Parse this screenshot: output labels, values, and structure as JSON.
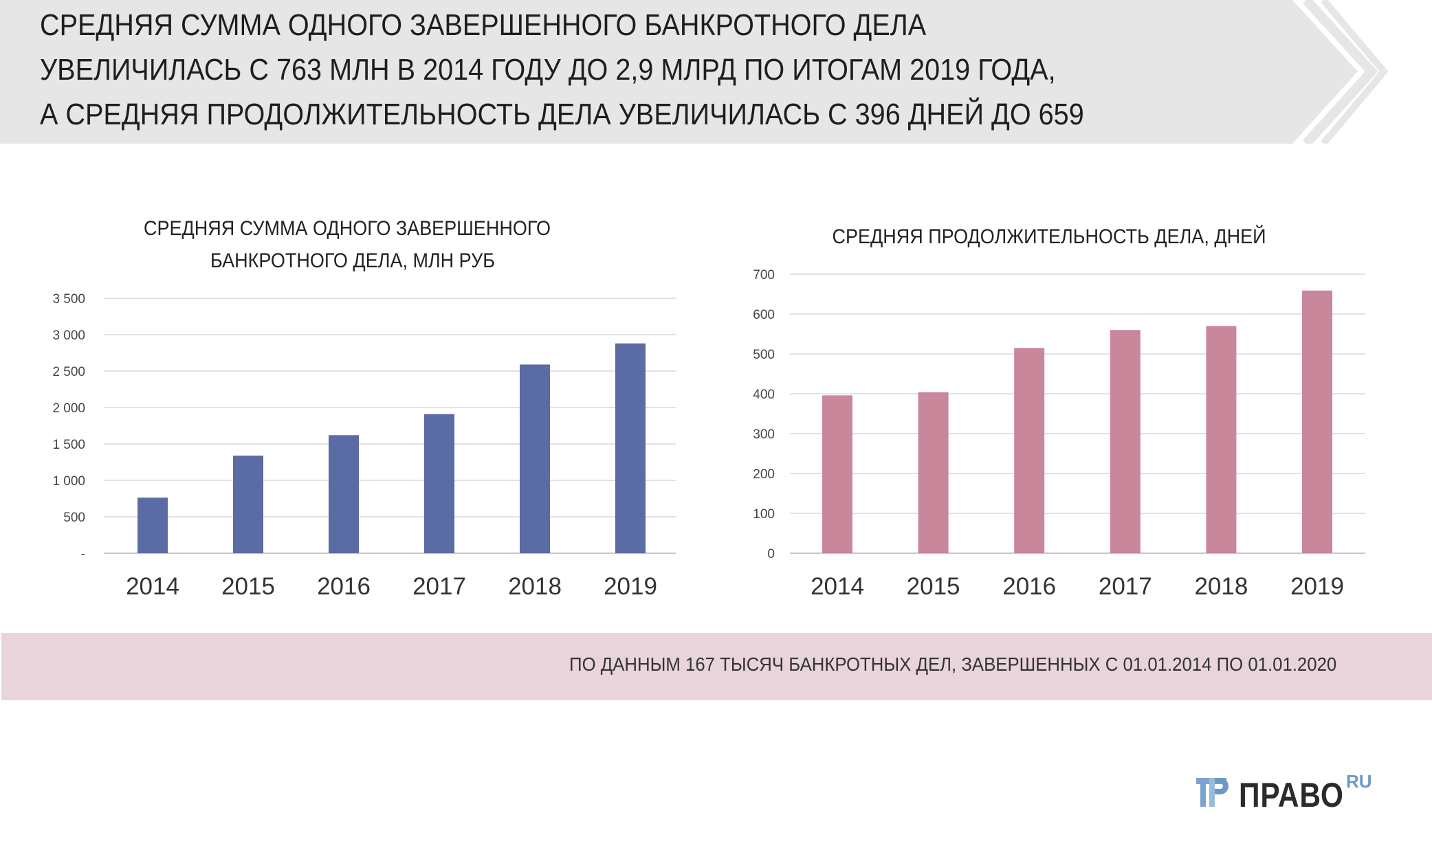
{
  "header": {
    "lines": [
      "СРЕДНЯЯ СУММА ОДНОГО ЗАВЕРШЕННОГО БАНКРОТНОГО ДЕЛА",
      "УВЕЛИЧИЛАСЬ С 763 МЛН В 2014 ГОДУ ДО 2,9 МЛРД ПО ИТОГАМ 2019 ГОДА,",
      "А СРЕДНЯЯ ПРОДОЛЖИТЕЛЬНОСТЬ ДЕЛА УВЕЛИЧИЛАСЬ С 396 ДНЕЙ ДО 659"
    ]
  },
  "chart_data": [
    {
      "type": "bar",
      "title_lines": [
        "СРЕДНЯЯ СУММА ОДНОГО ЗАВЕРШЕННОГО",
        "БАНКРОТНОГО ДЕЛА, МЛН РУБ"
      ],
      "categories": [
        "2014",
        "2015",
        "2016",
        "2017",
        "2018",
        "2019"
      ],
      "values": [
        763,
        1340,
        1620,
        1910,
        2590,
        2880
      ],
      "ylim": [
        0,
        3500
      ],
      "yticks": [
        0,
        500,
        1000,
        1500,
        2000,
        2500,
        3000,
        3500
      ],
      "ytick_labels": [
        "-",
        "500",
        "1 000",
        "1 500",
        "2 000",
        "2 500",
        "3 000",
        "3 500"
      ],
      "grid": true,
      "color": "#5b6ba3"
    },
    {
      "type": "bar",
      "title_lines": [
        "СРЕДНЯЯ ПРОДОЛЖИТЕЛЬНОСТЬ ДЕЛА, ДНЕЙ"
      ],
      "categories": [
        "2014",
        "2015",
        "2016",
        "2017",
        "2018",
        "2019"
      ],
      "values": [
        396,
        404,
        515,
        560,
        570,
        659
      ],
      "ylim": [
        0,
        700
      ],
      "yticks": [
        0,
        100,
        200,
        300,
        400,
        500,
        600,
        700
      ],
      "ytick_labels": [
        "0",
        "100",
        "200",
        "300",
        "400",
        "500",
        "600",
        "700"
      ],
      "grid": true,
      "color": "#c9879b"
    }
  ],
  "footer": {
    "text": "ПО ДАННЫМ 167 ТЫСЯЧ БАНКРОТНЫХ ДЕЛ, ЗАВЕРШЕННЫХ С 01.01.2014 ПО 01.01.2020"
  },
  "logo": {
    "word": "ПРАВО",
    "suffix": "RU"
  }
}
